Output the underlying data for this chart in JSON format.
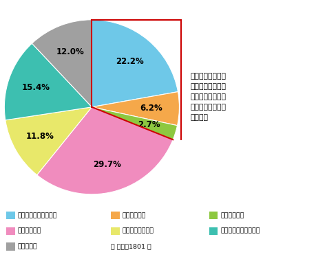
{
  "labels": [
    "自宅建物・家財の両方",
    "自宅建物だけ",
    "自宅家財だけ",
    "水害補償なし",
    "水害補償有無不明",
    "火災保険・共済未加入",
    "わからない"
  ],
  "values": [
    22.2,
    6.2,
    2.7,
    29.7,
    11.8,
    15.4,
    12.0
  ],
  "colors": [
    "#6ec8e8",
    "#f5a84a",
    "#8dc840",
    "#f08cbe",
    "#e8e86a",
    "#3dbfb0",
    "#a0a0a0"
  ],
  "text_labels": [
    "22.2%",
    "6.2%",
    "2.7%",
    "29.7%",
    "11.8%",
    "15.4%",
    "12.0%"
  ],
  "annotation_text": "自宅建物もしくは\n家財を対象とした\n水災補償付の火災\n保険や共済に加入\nしている",
  "total_text": "【 総数：1801 】",
  "startangle": 90,
  "background_color": "#ffffff",
  "red_color": "#cc0000"
}
